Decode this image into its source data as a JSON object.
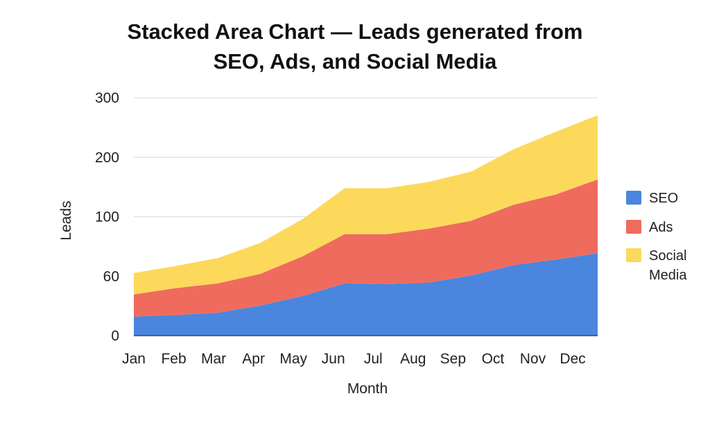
{
  "chart_data": {
    "type": "area",
    "stacked": true,
    "title": [
      "Stacked Area Chart — Leads generated from",
      "SEO, Ads, and Social Media"
    ],
    "xlabel": "Month",
    "ylabel": "Leads",
    "categories": [
      "Jan",
      "Feb",
      "Mar",
      "Apr",
      "May",
      "Jun",
      "Jul",
      "Aug",
      "Sep",
      "Oct",
      "Nov",
      "Dec"
    ],
    "yticks": [
      "0",
      "60",
      "100",
      "200",
      "300"
    ],
    "ylim": [
      0,
      300
    ],
    "grid": true,
    "legend": "right",
    "series": [
      {
        "name": "SEO",
        "color": "#4a86de",
        "values": [
          24,
          26,
          29,
          38,
          50,
          66,
          65,
          67,
          76,
          89,
          96,
          104
        ]
      },
      {
        "name": "Ads",
        "color": "#ef6b5e",
        "values": [
          28,
          34,
          37,
          40,
          50,
          62,
          63,
          68,
          69,
          76,
          82,
          93
        ]
      },
      {
        "name": "Social Media",
        "color": "#fcd95b",
        "values": [
          27,
          28,
          32,
          39,
          47,
          58,
          58,
          59,
          62,
          70,
          79,
          81
        ]
      }
    ]
  }
}
